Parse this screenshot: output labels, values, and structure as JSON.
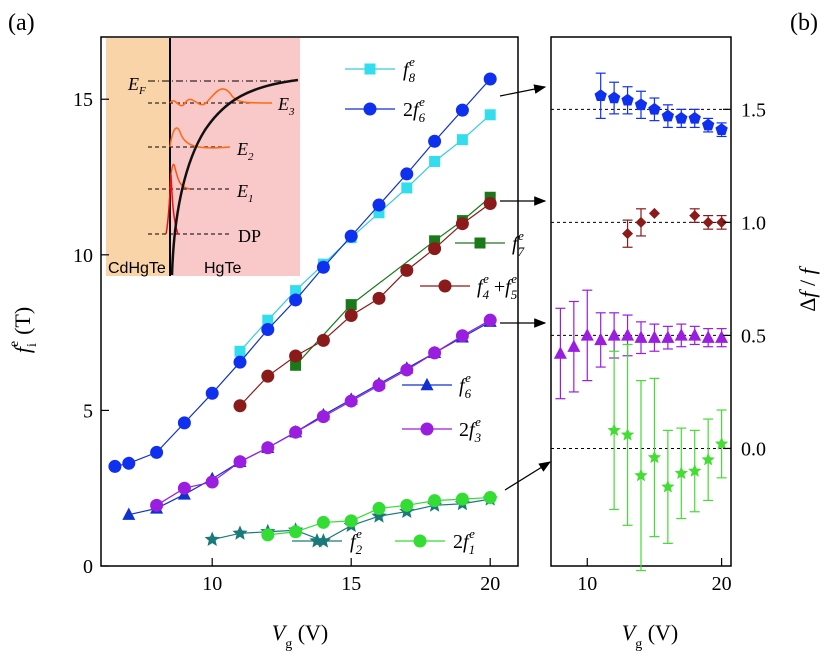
{
  "panel_labels": [
    "(a)",
    "(b)"
  ],
  "chart_data": [
    {
      "type": "line",
      "panel": "(a)",
      "xlabel": "V_g (V)",
      "ylabel": "f_i^e (T)",
      "xlim": [
        6,
        21
      ],
      "ylim": [
        0,
        17
      ],
      "xticks": [
        10,
        15,
        20
      ],
      "yticks": [
        0,
        5,
        10,
        15
      ],
      "series": [
        {
          "name": "f8e",
          "color": "#33ddee",
          "line": "#33ccdd",
          "marker": "square",
          "x": [
            11,
            12,
            13,
            14,
            15,
            16,
            17,
            18,
            19,
            20
          ],
          "y": [
            6.9,
            7.9,
            8.85,
            9.7,
            10.55,
            11.35,
            12.15,
            13.0,
            13.7,
            14.5
          ]
        },
        {
          "name": "2f6e",
          "color": "#1030f0",
          "line": "#1030d0",
          "marker": "circle",
          "x": [
            6.5,
            7,
            8,
            9,
            10,
            11,
            12,
            13,
            14,
            15,
            16,
            17,
            18,
            19,
            20
          ],
          "y": [
            3.2,
            3.3,
            3.65,
            4.6,
            5.55,
            6.55,
            7.6,
            8.55,
            9.6,
            10.6,
            11.6,
            12.6,
            13.65,
            14.65,
            15.65
          ]
        },
        {
          "name": "f7e",
          "color": "#1a7a1a",
          "line": "#1a7a1a",
          "marker": "square",
          "x": [
            13,
            15,
            18,
            19,
            20
          ],
          "y": [
            6.45,
            8.4,
            10.45,
            11.1,
            11.85
          ]
        },
        {
          "name": "f4e+f5e",
          "color": "#8b1a1a",
          "line": "#8b1a1a",
          "marker": "circle",
          "x": [
            11,
            12,
            13,
            14,
            15,
            16,
            17,
            18,
            19,
            20
          ],
          "y": [
            5.15,
            6.1,
            6.75,
            7.25,
            8.05,
            8.6,
            9.5,
            10.2,
            11.0,
            11.65
          ]
        },
        {
          "name": "f6e",
          "color": "#1030d0",
          "line": "#1030d0",
          "marker": "triangle",
          "x": [
            7,
            8,
            9,
            10,
            11,
            12,
            13,
            14,
            15,
            16,
            17,
            18,
            19,
            20
          ],
          "y": [
            1.65,
            1.85,
            2.3,
            2.8,
            3.35,
            3.8,
            4.3,
            4.85,
            5.35,
            5.85,
            6.35,
            6.85,
            7.35,
            7.85
          ]
        },
        {
          "name": "2f3e",
          "color": "#9a1ee0",
          "line": "#9a1ee0",
          "marker": "circle",
          "x": [
            8,
            9,
            10,
            11,
            12,
            13,
            14,
            15,
            16,
            17,
            18,
            19,
            20
          ],
          "y": [
            1.95,
            2.5,
            2.7,
            3.35,
            3.8,
            4.3,
            4.8,
            5.3,
            5.8,
            6.3,
            6.85,
            7.4,
            7.9
          ]
        },
        {
          "name": "f2e",
          "color": "#1a7a7a",
          "line": "#1a7a7a",
          "marker": "star",
          "x": [
            10,
            11,
            12,
            13,
            14,
            15,
            16,
            17,
            18,
            19,
            20
          ],
          "y": [
            0.85,
            1.05,
            1.1,
            1.15,
            0.8,
            1.3,
            1.6,
            1.75,
            1.95,
            2.0,
            2.15
          ]
        },
        {
          "name": "2f1e",
          "color": "#33dd33",
          "line": "#33dd33",
          "marker": "circle",
          "x": [
            12,
            13,
            14,
            15,
            16,
            17,
            18,
            19,
            20
          ],
          "y": [
            1.0,
            1.1,
            1.4,
            1.45,
            1.85,
            1.95,
            2.1,
            2.15,
            2.2
          ]
        }
      ]
    },
    {
      "type": "scatter",
      "panel": "(b)",
      "xlabel": "V_g (V)",
      "ylabel": "Δf / f",
      "xlim": [
        7.3,
        20.7
      ],
      "ylim": [
        -0.52,
        1.82
      ],
      "xticks": [
        10,
        20
      ],
      "yticks": [
        0.0,
        0.5,
        1.0,
        1.5
      ],
      "ytick_labels": [
        "0.0",
        "0.5",
        "1.0",
        "1.5"
      ],
      "reference_lines": [
        0.0,
        0.5,
        1.0,
        1.5
      ],
      "series": [
        {
          "color": "#1030f0",
          "marker": "pentagon",
          "x": [
            11,
            12,
            13,
            14,
            15,
            16,
            17,
            18,
            19,
            20
          ],
          "y": [
            1.56,
            1.55,
            1.54,
            1.52,
            1.5,
            1.47,
            1.46,
            1.46,
            1.43,
            1.41
          ],
          "err": [
            0.1,
            0.07,
            0.06,
            0.06,
            0.05,
            0.05,
            0.04,
            0.04,
            0.03,
            0.03
          ]
        },
        {
          "color": "#8b1a1a",
          "marker": "diamond",
          "x": [
            13,
            14,
            15,
            18,
            19,
            20
          ],
          "y": [
            0.95,
            1.0,
            1.04,
            1.03,
            1.0,
            1.0
          ],
          "err": [
            0.06,
            0.06,
            0.0,
            0.03,
            0.03,
            0.03
          ]
        },
        {
          "color": "#9a1ee0",
          "marker": "triangle",
          "x": [
            8,
            9,
            10,
            11,
            12,
            13,
            14,
            15,
            16,
            17,
            18,
            19,
            20
          ],
          "y": [
            0.42,
            0.45,
            0.5,
            0.48,
            0.5,
            0.5,
            0.49,
            0.49,
            0.49,
            0.5,
            0.5,
            0.49,
            0.49
          ],
          "err": [
            0.2,
            0.2,
            0.2,
            0.12,
            0.1,
            0.09,
            0.07,
            0.06,
            0.05,
            0.05,
            0.04,
            0.04,
            0.04
          ]
        },
        {
          "color": "#44dd33",
          "marker": "star",
          "x": [
            12,
            13,
            14,
            15,
            16,
            17,
            18,
            19,
            20
          ],
          "y": [
            0.08,
            0.06,
            -0.12,
            -0.04,
            -0.17,
            -0.11,
            -0.1,
            -0.05,
            0.02
          ],
          "err": [
            0.35,
            0.4,
            0.42,
            0.35,
            0.25,
            0.2,
            0.18,
            0.18,
            0.15
          ]
        }
      ]
    }
  ],
  "legend": [
    {
      "label": "f",
      "sub": "8",
      "sup": "e",
      "prefix": ""
    },
    {
      "label": "f",
      "sub": "6",
      "sup": "e",
      "prefix": "2"
    },
    {
      "label": "f",
      "sub": "7",
      "sup": "e",
      "prefix": ""
    },
    {
      "label": "f4e+f5e",
      "prefix": ""
    },
    {
      "label": "f",
      "sub": "6",
      "sup": "e",
      "prefix": ""
    },
    {
      "label": "f",
      "sub": "3",
      "sup": "e",
      "prefix": "2"
    },
    {
      "label": "f",
      "sub": "2",
      "sup": "e",
      "prefix": ""
    },
    {
      "label": "f",
      "sub": "1",
      "sup": "e",
      "prefix": "2"
    }
  ],
  "inset": {
    "left_material": "CdHgTe",
    "right_material": "HgTe",
    "levels": [
      "E_F",
      "E_3",
      "E_2",
      "E_1",
      "DP"
    ],
    "left_color": "#f9d4a8",
    "right_color": "#f9c8c8"
  }
}
